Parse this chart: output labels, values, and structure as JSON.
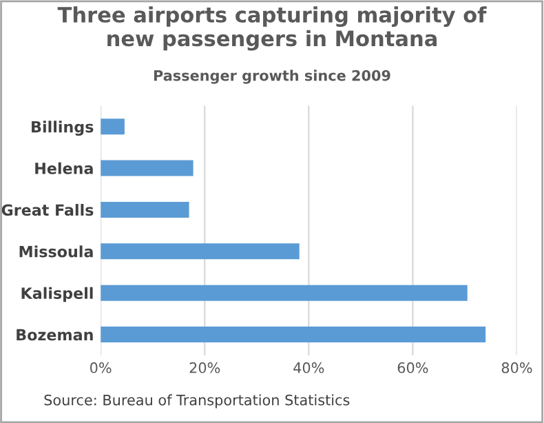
{
  "chart_data": {
    "type": "bar",
    "orientation": "horizontal",
    "title": "Three airports capturing majority of\nnew passengers in Montana",
    "subtitle": "Passenger growth since 2009",
    "categories": [
      "Billings",
      "Helena",
      "Great Falls",
      "Missoula",
      "Kalispell",
      "Bozeman"
    ],
    "values": [
      4.6,
      17.8,
      17.0,
      38.2,
      70.5,
      74.0
    ],
    "color": "#5b9bd5",
    "xlim": [
      0,
      80
    ],
    "xticks": [
      {
        "value": 0,
        "label": "0%"
      },
      {
        "value": 20,
        "label": "20%"
      },
      {
        "value": 40,
        "label": "40%"
      },
      {
        "value": 60,
        "label": "60%"
      },
      {
        "value": 80,
        "label": "80%"
      }
    ],
    "grid": "x",
    "legend": false,
    "annotations": [
      "Source: Bureau of Transportation Statistics"
    ]
  }
}
